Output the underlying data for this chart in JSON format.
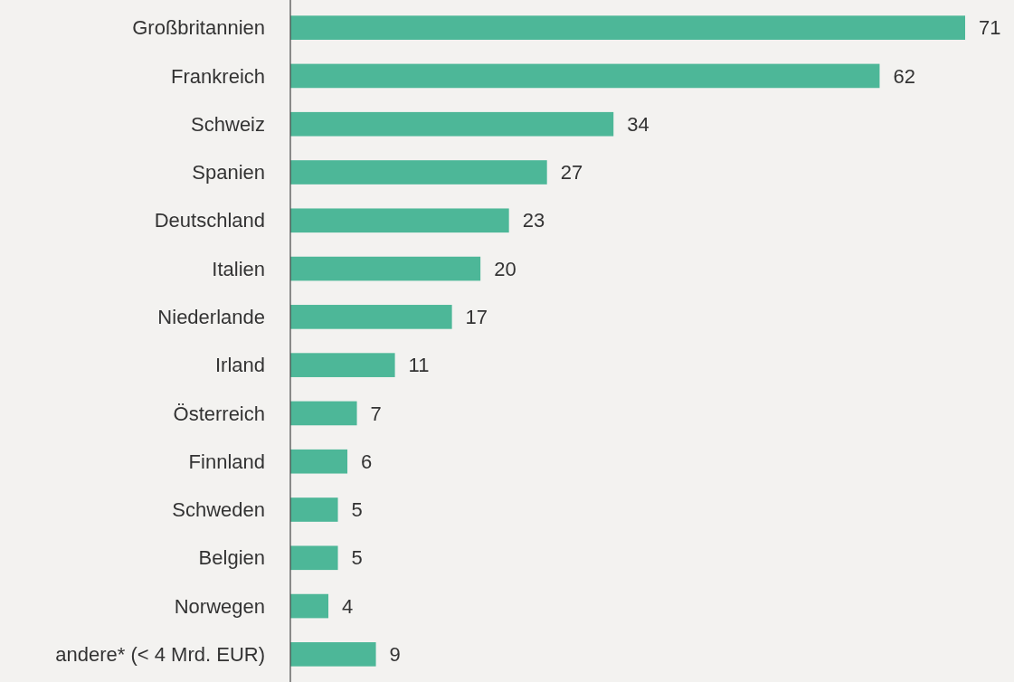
{
  "chart_data": {
    "type": "bar",
    "orientation": "horizontal",
    "categories": [
      "Großbritannien",
      "Frankreich",
      "Schweiz",
      "Spanien",
      "Deutschland",
      "Italien",
      "Niederlande",
      "Irland",
      "Österreich",
      "Finnland",
      "Schweden",
      "Belgien",
      "Norwegen",
      "andere* (< 4 Mrd. EUR)"
    ],
    "values": [
      71,
      62,
      34,
      27,
      23,
      20,
      17,
      11,
      7,
      6,
      5,
      5,
      4,
      9
    ],
    "color": "#4db798",
    "data_labels": true
  }
}
